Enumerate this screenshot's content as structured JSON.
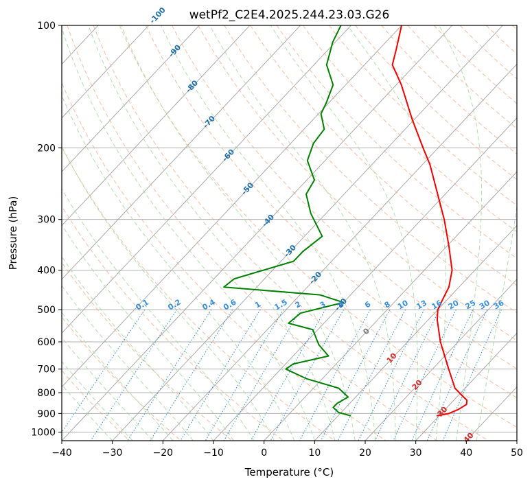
{
  "chart_data": {
    "type": "line",
    "title": "wetPf2_C2E4.2025.244.23.03.G26",
    "xlabel": "Temperature (°C)",
    "ylabel": "Pressure (hPa)",
    "xlim": [
      -40,
      50
    ],
    "ylim": [
      1050,
      100
    ],
    "y_scale": "log",
    "skew": true,
    "grid": true,
    "x_ticks": [
      -40,
      -30,
      -20,
      -10,
      0,
      10,
      20,
      30,
      40,
      50
    ],
    "y_ticks": [
      100,
      200,
      300,
      400,
      500,
      600,
      700,
      800,
      900,
      1000
    ],
    "colors": {
      "temperature": "#ee0000",
      "dewpoint": "#008000",
      "dry_adiabat": "#f4a582",
      "moist_adiabat": "#a6d7a0",
      "mixing_ratio": "#3a8fd8",
      "isotherm": "#a0a0a0",
      "isotherm_label_cold": "#1f6fa8",
      "isotherm_label_warm": "#d62728"
    },
    "series": [
      {
        "name": "",
        "color": "#ee0000",
        "points": [
          {
            "p": 912,
            "t": 29.5
          },
          {
            "p": 900,
            "t": 31.5
          },
          {
            "p": 880,
            "t": 32.6
          },
          {
            "p": 855,
            "t": 33.3
          },
          {
            "p": 835,
            "t": 32.6
          },
          {
            "p": 810,
            "t": 30.5
          },
          {
            "p": 780,
            "t": 28.0
          },
          {
            "p": 700,
            "t": 23.2
          },
          {
            "p": 600,
            "t": 16.5
          },
          {
            "p": 530,
            "t": 11.8
          },
          {
            "p": 500,
            "t": 10.0
          },
          {
            "p": 470,
            "t": 9.0
          },
          {
            "p": 440,
            "t": 8.0
          },
          {
            "p": 400,
            "t": 5.5
          },
          {
            "p": 350,
            "t": 0.5
          },
          {
            "p": 300,
            "t": -5.5
          },
          {
            "p": 260,
            "t": -11.5
          },
          {
            "p": 220,
            "t": -18.5
          },
          {
            "p": 200,
            "t": -23.0
          },
          {
            "p": 170,
            "t": -30.5
          },
          {
            "p": 140,
            "t": -39.0
          },
          {
            "p": 125,
            "t": -44.5
          },
          {
            "p": 115,
            "t": -46.5
          },
          {
            "p": 100,
            "t": -50.0
          }
        ]
      },
      {
        "name": "",
        "color": "#008000",
        "points": [
          {
            "p": 912,
            "t": 12.5
          },
          {
            "p": 895,
            "t": 9.5
          },
          {
            "p": 870,
            "t": 7.5
          },
          {
            "p": 850,
            "t": 7.5
          },
          {
            "p": 820,
            "t": 8.5
          },
          {
            "p": 780,
            "t": 5.0
          },
          {
            "p": 740,
            "t": -3.0
          },
          {
            "p": 700,
            "t": -9.0
          },
          {
            "p": 680,
            "t": -8.5
          },
          {
            "p": 650,
            "t": -3.0
          },
          {
            "p": 610,
            "t": -7.0
          },
          {
            "p": 560,
            "t": -11.0
          },
          {
            "p": 540,
            "t": -17.0
          },
          {
            "p": 510,
            "t": -16.5
          },
          {
            "p": 480,
            "t": -10.0
          },
          {
            "p": 460,
            "t": -16.0
          },
          {
            "p": 440,
            "t": -36.5
          },
          {
            "p": 420,
            "t": -36.0
          },
          {
            "p": 380,
            "t": -27.5
          },
          {
            "p": 360,
            "t": -27.5
          },
          {
            "p": 330,
            "t": -26.5
          },
          {
            "p": 290,
            "t": -33.0
          },
          {
            "p": 260,
            "t": -37.5
          },
          {
            "p": 240,
            "t": -38.5
          },
          {
            "p": 215,
            "t": -43.5
          },
          {
            "p": 195,
            "t": -45.5
          },
          {
            "p": 180,
            "t": -46.0
          },
          {
            "p": 165,
            "t": -49.5
          },
          {
            "p": 155,
            "t": -50.5
          },
          {
            "p": 140,
            "t": -52.5
          },
          {
            "p": 125,
            "t": -57.5
          },
          {
            "p": 110,
            "t": -60.5
          },
          {
            "p": 100,
            "t": -62.0
          }
        ]
      }
    ],
    "isotherm_labels": [
      {
        "t": -100,
        "text": "-100"
      },
      {
        "t": -90,
        "text": "-90"
      },
      {
        "t": -80,
        "text": "-80"
      },
      {
        "t": -70,
        "text": "-70"
      },
      {
        "t": -60,
        "text": "-60"
      },
      {
        "t": -50,
        "text": "-50"
      },
      {
        "t": -40,
        "text": "-40"
      },
      {
        "t": -30,
        "text": "-30"
      },
      {
        "t": -20,
        "text": "-20"
      },
      {
        "t": -10,
        "text": "-10"
      },
      {
        "t": 0,
        "text": "0"
      },
      {
        "t": 10,
        "text": "10"
      },
      {
        "t": 20,
        "text": "20"
      },
      {
        "t": 30,
        "text": "30"
      },
      {
        "t": 40,
        "text": "40"
      }
    ],
    "mixing_ratio_labels": [
      "0.1",
      "0.2",
      "0.4",
      "0.6",
      "1",
      "1.5",
      "2",
      "3",
      "4",
      "6",
      "8",
      "10",
      "13",
      "16",
      "20",
      "25",
      "30",
      "36"
    ],
    "mixing_ratio_values": [
      0.1,
      0.2,
      0.4,
      0.6,
      1,
      1.5,
      2,
      3,
      4,
      6,
      8,
      10,
      13,
      16,
      20,
      25,
      30,
      36
    ]
  }
}
